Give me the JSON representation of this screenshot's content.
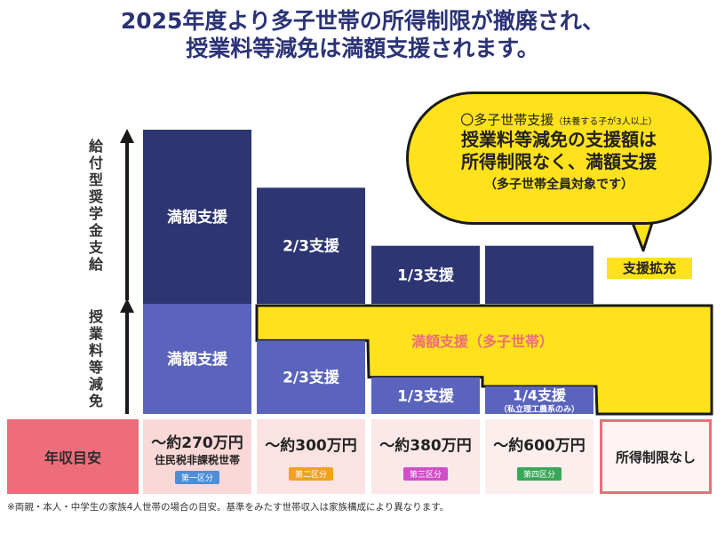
{
  "title": {
    "line1": "2025年度より多子世帯の所得制限が撤廃され、",
    "line2": "授業料等減免は満額支援されます。"
  },
  "axis": {
    "upper_label": "給付型奨学金支給",
    "lower_label": "授業料等減免"
  },
  "chart_data": {
    "type": "bar",
    "categories": [
      "〜約270万円",
      "〜約300万円",
      "〜約380万円",
      "〜約600万円",
      "所得制限なし"
    ],
    "category_sublabels": [
      "住民税非課税世帯",
      "",
      "",
      "",
      ""
    ],
    "category_tags": [
      "第一区分",
      "第二区分",
      "第三区分",
      "第四区分",
      ""
    ],
    "series": [
      {
        "name": "給付型奨学金支給",
        "values": [
          1,
          0.6667,
          0.3333,
          0.3333,
          0
        ],
        "labels": [
          "満額支援",
          "2/3支援",
          "1/3支援",
          "",
          ""
        ]
      },
      {
        "name": "授業料等減免",
        "values": [
          1,
          0.6667,
          0.3333,
          0.25,
          0
        ],
        "labels": [
          "満額支援",
          "2/3支援",
          "1/3支援",
          "1/4支援",
          ""
        ],
        "sublabels": [
          "",
          "",
          "",
          "（私立理工農系のみ）",
          ""
        ]
      },
      {
        "name": "満額支援（多子世帯）",
        "values": [
          0,
          1,
          1,
          1,
          1
        ]
      }
    ],
    "overlay_label": "満額支援（多子世帯）",
    "x_header": "年収目安"
  },
  "callout": {
    "line1": "〇多子世帯支援",
    "line1_small": "（扶養する子が3人以上）",
    "line2": "授業料等減免の支援額は",
    "line3": "所得制限なく、満額支援",
    "line4": "（多子世帯全員対象です）"
  },
  "expand_label": "支援拡充",
  "footnote": "※両親・本人・中学生の家族4人世帯の場合の目安。基準をみたす世帯収入は家族構成により異なります。",
  "colors": {
    "upper_bar": "#2d3572",
    "lower_bar": "#5a64bd",
    "highlight": "#ffe21c",
    "overlay_text": "#ee6d7a",
    "tag_colors": [
      "#4c8ed8",
      "#f2a121",
      "#d04fc7",
      "#3aa65a"
    ]
  }
}
